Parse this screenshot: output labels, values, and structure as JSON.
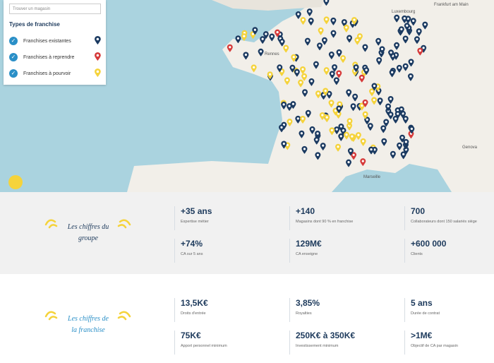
{
  "search": {
    "placeholder": "Trouver un magasin"
  },
  "legend": {
    "title": "Types de franchise",
    "items": [
      "Franchises existantes",
      "Franchises à reprendre",
      "Franchises à pourvoir"
    ]
  },
  "map_labels": [
    "Rennes",
    "Marseille",
    "Luxembourg",
    "Frankfurt am Main",
    "Genova"
  ],
  "groupe": {
    "title_lines": [
      "Les chiffres du",
      "groupe"
    ],
    "stats": [
      {
        "value": "+35 ans",
        "label": "Expertise métier"
      },
      {
        "value": "+140",
        "label": "Magasins dont 90 % en franchise"
      },
      {
        "value": "700",
        "label": "Collaborateurs dont 150 salariés siège"
      },
      {
        "value": "+74%",
        "label": "CA sur 5 ans"
      },
      {
        "value": "129M€",
        "label": "CA enseigne"
      },
      {
        "value": "+600 000",
        "label": "Clients"
      }
    ]
  },
  "franchise": {
    "title_lines": [
      "Les chiffres de",
      "la franchise"
    ],
    "stats": [
      {
        "value": "13,5K€",
        "label": "Droits d'entrée"
      },
      {
        "value": "3,85%",
        "label": "Royalties"
      },
      {
        "value": "5 ans",
        "label": "Durée de contrat"
      },
      {
        "value": "75K€",
        "label": "Apport personnel minimum"
      },
      {
        "value": "250K€ à 350K€",
        "label": "Investissement minimum"
      },
      {
        "value": ">1M€",
        "label": "Objectif de CA par magasin"
      }
    ]
  }
}
